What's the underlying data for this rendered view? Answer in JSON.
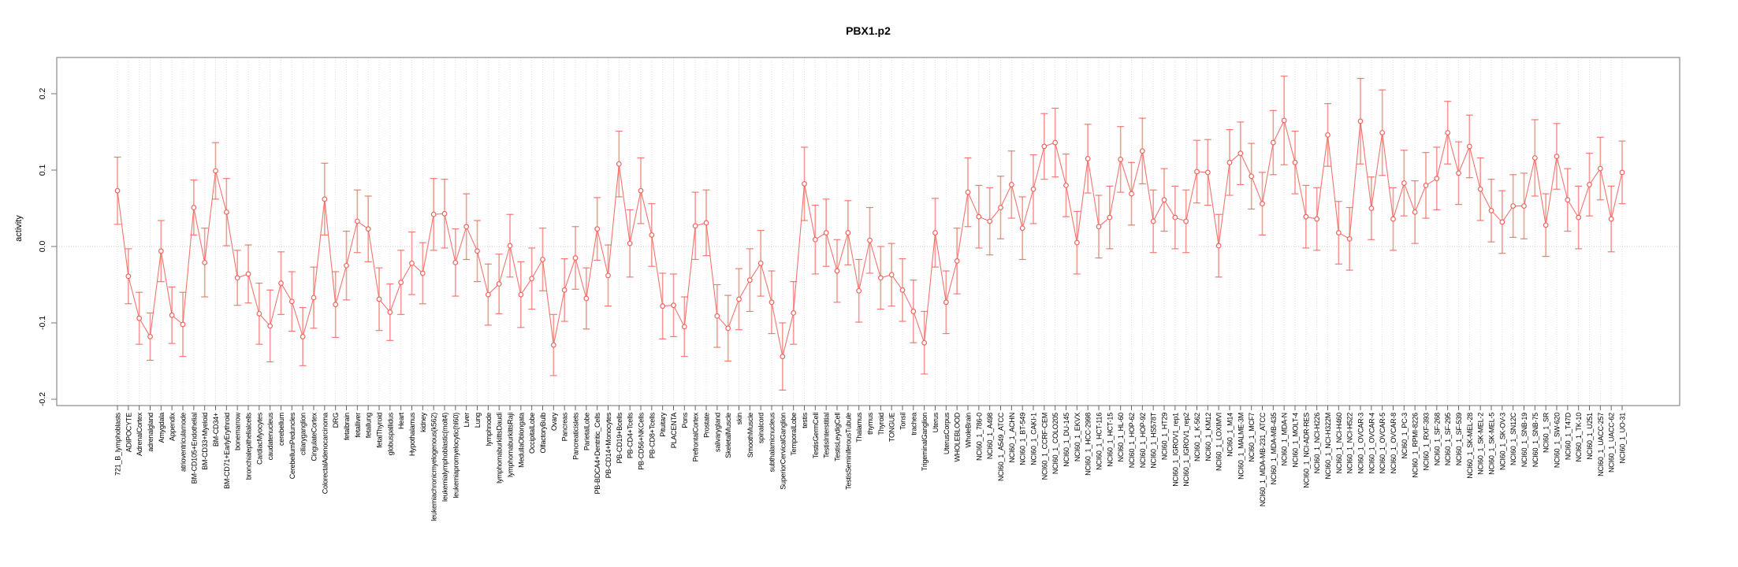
{
  "chart_data": {
    "type": "line",
    "title": "PBX1.p2",
    "ylabel": "activity",
    "xlabel": "",
    "legend": "none",
    "grid": "vertical dotted gridline per category; dotted horizontal line at 0",
    "marker": "open-circle",
    "error_bars": true,
    "series_color": "#f0655f",
    "error_bar_color": "#f59b94",
    "axis_color": "#8a8a8a",
    "gridline_color": "#dedede",
    "zero_line_color": "#cccccc",
    "ylim": [
      -0.21,
      0.245
    ],
    "yticks": [
      -0.2,
      -0.1,
      0.0,
      0.1,
      0.2
    ],
    "ytick_labels": [
      "-0.2",
      "-0.1",
      "0.0",
      "0.1",
      "0.2"
    ],
    "categories": [
      "721_B_lymphoblasts",
      "ADIPOCYTE",
      "AdrenalCortex",
      "adrenalgland",
      "Amygdala",
      "Appendix",
      "atrioventricularnode",
      "BM-CD105+Endothelial",
      "BM-CD33+Myeloid",
      "BM-CD34+",
      "BM-CD71+EarlyErythroid",
      "bonemarrow",
      "bronchialepithelialcells",
      "CardiacMyocytes",
      "caudatenucleus",
      "cerebellum",
      "CerebellumPeduncles",
      "ciliaryganglion",
      "CingulateCortex",
      "ColorectalAdenocarcinoma",
      "DRG",
      "fetalbrain",
      "fetalliver",
      "fetallung",
      "fetalThyroid",
      "globuspallidus",
      "Heart",
      "Hypothalamus",
      "kidney",
      "leukemiachronicmyelogenous(k562)",
      "leukemialymphoblastic(molt4)",
      "leukemiapromyelocytic(hl60)",
      "Liver",
      "Lung",
      "lymphnode",
      "lymphomaburkittsDaudi",
      "lymphomaburkittsRaji",
      "MedullaOblongata",
      "OccipitalLobe",
      "OlfactoryBulb",
      "Ovary",
      "Pancreas",
      "Pancreaticislets",
      "ParietalLobe",
      "PB-BDCA4+Dentritic_Cells",
      "PB-CD14+Monocytes",
      "PB-CD19+Bcells",
      "PB-CD4+Tcells",
      "PB-CD56+NKCells",
      "PB-CD8+Tcells",
      "Pituitary",
      "PLACENTA",
      "Pons",
      "PrefrontalCortex",
      "Prostate",
      "salivarygland",
      "SkeletalMuscle",
      "skin",
      "SmoothMuscle",
      "spinalcord",
      "subthalamicnucleus",
      "SuperiorCervicalGanglion",
      "TemporalLobe",
      "testis",
      "TestisGermCell",
      "TestisInterstitial",
      "TestisLeydigCell",
      "TestisSeminiferousTubule",
      "Thalamus",
      "thymus",
      "Thyroid",
      "TONGUE",
      "Tonsil",
      "trachea",
      "TrigeminalGanglion",
      "Uterus",
      "UterusCorpus",
      "WHOLEBLOOD",
      "WholeBrain",
      "NCI60_1_786-0",
      "NCI60_1_A498",
      "NCI60_1_A549_ATCC",
      "NCI60_1_ACHN",
      "NCI60_1_BT-549",
      "NCI60_1_CAKI-1",
      "NCI60_1_CCRF-CEM",
      "NCI60_1_COLO205",
      "NCI60_1_DU-145",
      "NCI60_1_EKVX",
      "NCI60_1_HCC-2998",
      "NCI60_1_HCT-116",
      "NCI60_1_HCT-15",
      "NCI60_1_HL-60",
      "NCI60_1_HOP-62",
      "NCI60_1_HOP-92",
      "NCI60_1_HS578T",
      "NCI60_1_HT29",
      "NCI60_1_IGROV1_rep1",
      "NCI60_1_IGROV1_rep2",
      "NCI60_1_K-562",
      "NCI60_1_KM12",
      "NCI60_1_LOXIMVI",
      "NCI60_1_M14",
      "NCI60_1_MALME-3M",
      "NCI60_1_MCF7",
      "NCI60_1_MDA-MB-231_ATCC",
      "NCI60_1_MDA-MB-435",
      "NCI60_1_MDA-N",
      "NCI60_1_MOLT-4",
      "NCI60_1_NCI-ADR-RES",
      "NCI60_1_NCI-H226",
      "NCI60_1_NCI-H322M",
      "NCI60_1_NCI-H460",
      "NCI60_1_NCI-H522",
      "NCI60_1_OVCAR-3",
      "NCI60_1_OVCAR-4",
      "NCI60_1_OVCAR-5",
      "NCI60_1_OVCAR-8",
      "NCI60_1_PC-3",
      "NCI60_1_RPMI-8226",
      "NCI60_1_RXF-393",
      "NCI60_1_SF-268",
      "NCI60_1_SF-295",
      "NCI60_1_SF-539",
      "NCI60_1_SK-MEL-28",
      "NCI60_1_SK-MEL-2",
      "NCI60_1_SK-MEL-5",
      "NCI60_1_SK-OV-3",
      "NCI60_1_SN12C",
      "NCI60_1_SNB-19",
      "NCI60_1_SNB-75",
      "NCI60_1_SR",
      "NCI60_1_SW-620",
      "NCI60_1_T47D",
      "NCI60_1_TK-10",
      "NCI60_1_U251",
      "NCI60_1_UACC-257",
      "NCI60_1_UACC-62",
      "NCI60_1_UO-31"
    ],
    "values": [
      0.073,
      -0.039,
      -0.094,
      -0.118,
      -0.006,
      -0.09,
      -0.102,
      0.051,
      -0.021,
      0.099,
      0.045,
      -0.041,
      -0.036,
      -0.088,
      -0.104,
      -0.048,
      -0.072,
      -0.118,
      -0.067,
      0.062,
      -0.076,
      -0.025,
      0.033,
      0.023,
      -0.069,
      -0.086,
      -0.047,
      -0.022,
      -0.035,
      0.042,
      0.043,
      -0.021,
      0.026,
      -0.006,
      -0.063,
      -0.049,
      0.001,
      -0.063,
      -0.042,
      -0.017,
      -0.129,
      -0.057,
      -0.015,
      -0.068,
      0.023,
      -0.038,
      0.108,
      0.004,
      0.073,
      0.015,
      -0.078,
      -0.077,
      -0.105,
      0.027,
      0.031,
      -0.091,
      -0.107,
      -0.069,
      -0.044,
      -0.022,
      -0.073,
      -0.144,
      -0.087,
      0.082,
      0.009,
      0.018,
      -0.032,
      0.018,
      -0.058,
      0.008,
      -0.041,
      -0.037,
      -0.057,
      -0.085,
      -0.126,
      0.018,
      -0.073,
      -0.019,
      0.071,
      0.039,
      0.033,
      0.051,
      0.081,
      0.024,
      0.075,
      0.131,
      0.136,
      0.08,
      0.005,
      0.115,
      0.026,
      0.038,
      0.114,
      0.069,
      0.125,
      0.033,
      0.061,
      0.038,
      0.033,
      0.098,
      0.097,
      0.001,
      0.11,
      0.122,
      0.092,
      0.056,
      0.136,
      0.165,
      0.11,
      0.039,
      0.036,
      0.146,
      0.018,
      0.01,
      0.164,
      0.05,
      0.149,
      0.036,
      0.083,
      0.045,
      0.08,
      0.089,
      0.149,
      0.096,
      0.131,
      0.075,
      0.047,
      0.032,
      0.053,
      0.053,
      0.116,
      0.028,
      0.118,
      0.061,
      0.038,
      0.081,
      0.102,
      0.036,
      0.097
    ],
    "errors": [
      0.044,
      0.036,
      0.034,
      0.031,
      0.04,
      0.037,
      0.042,
      0.036,
      0.045,
      0.037,
      0.044,
      0.036,
      0.038,
      0.04,
      0.047,
      0.041,
      0.039,
      0.038,
      0.04,
      0.047,
      0.043,
      0.045,
      0.041,
      0.043,
      0.041,
      0.037,
      0.042,
      0.041,
      0.04,
      0.047,
      0.045,
      0.044,
      0.043,
      0.04,
      0.04,
      0.039,
      0.041,
      0.043,
      0.04,
      0.041,
      0.04,
      0.041,
      0.041,
      0.04,
      0.041,
      0.04,
      0.043,
      0.044,
      0.043,
      0.041,
      0.043,
      0.041,
      0.039,
      0.044,
      0.043,
      0.041,
      0.043,
      0.04,
      0.041,
      0.043,
      0.041,
      0.044,
      0.041,
      0.048,
      0.045,
      0.044,
      0.041,
      0.042,
      0.041,
      0.043,
      0.041,
      0.041,
      0.041,
      0.041,
      0.041,
      0.045,
      0.041,
      0.043,
      0.045,
      0.041,
      0.044,
      0.041,
      0.044,
      0.041,
      0.045,
      0.043,
      0.045,
      0.041,
      0.041,
      0.045,
      0.041,
      0.041,
      0.043,
      0.041,
      0.043,
      0.041,
      0.041,
      0.041,
      0.041,
      0.041,
      0.043,
      0.041,
      0.043,
      0.041,
      0.043,
      0.041,
      0.042,
      0.058,
      0.041,
      0.041,
      0.041,
      0.041,
      0.041,
      0.041,
      0.056,
      0.041,
      0.056,
      0.041,
      0.043,
      0.041,
      0.043,
      0.041,
      0.041,
      0.041,
      0.041,
      0.041,
      0.041,
      0.041,
      0.041,
      0.043,
      0.05,
      0.041,
      0.043,
      0.041,
      0.041,
      0.041,
      0.041,
      0.043,
      0.041
    ]
  }
}
